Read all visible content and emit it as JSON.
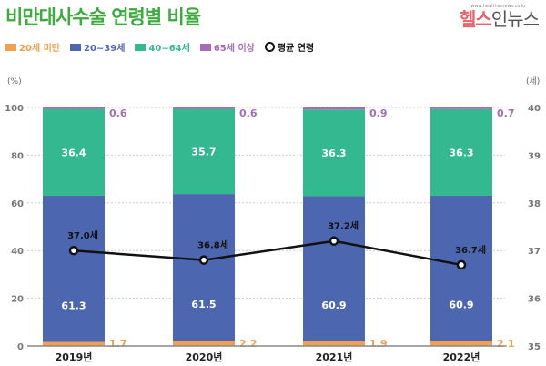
{
  "title": "비만대사수술 연령별 비율",
  "logo": {
    "main_a": "헬스",
    "main_b": "인뉴스",
    "url": "www.healthinnews.co.kr"
  },
  "chart_data": {
    "type": "bar",
    "stacked": true,
    "title": "비만대사수술 연령별 비율",
    "categories": [
      "2019년",
      "2020년",
      "2021년",
      "2022년"
    ],
    "left_axis": {
      "unit_label": "(%)",
      "range": [
        0,
        100
      ],
      "ticks": [
        "0",
        "20",
        "40",
        "60",
        "80",
        "100"
      ]
    },
    "right_axis": {
      "unit_label": "(세)",
      "range": [
        35,
        40
      ],
      "ticks": [
        "35",
        "36",
        "37",
        "38",
        "39",
        "40"
      ]
    },
    "grid": true,
    "legend_position": "top-left",
    "series": [
      {
        "name": "20세 미만",
        "color": "#f0a050",
        "values": [
          1.7,
          2.2,
          1.9,
          2.1
        ],
        "labels": [
          "1.7",
          "2.2",
          "1.9",
          "2.1"
        ]
      },
      {
        "name": "20~39세",
        "color": "#4d66b0",
        "values": [
          61.3,
          61.5,
          60.9,
          60.9
        ],
        "labels": [
          "61.3",
          "61.5",
          "60.9",
          "60.9"
        ]
      },
      {
        "name": "40~64세",
        "color": "#33b88f",
        "values": [
          36.4,
          35.7,
          36.3,
          36.3
        ],
        "labels": [
          "36.4",
          "35.7",
          "36.3",
          "36.3"
        ]
      },
      {
        "name": "65세 이상",
        "color": "#a56cb8",
        "values": [
          0.6,
          0.6,
          0.9,
          0.7
        ],
        "labels": [
          "0.6",
          "0.6",
          "0.9",
          "0.7"
        ]
      }
    ],
    "line_series": {
      "name": "평균 연령",
      "color": "#111111",
      "axis": "right",
      "values": [
        37.0,
        36.8,
        37.2,
        36.7
      ],
      "labels": [
        "37.0세",
        "36.8세",
        "37.2세",
        "36.7세"
      ]
    }
  }
}
